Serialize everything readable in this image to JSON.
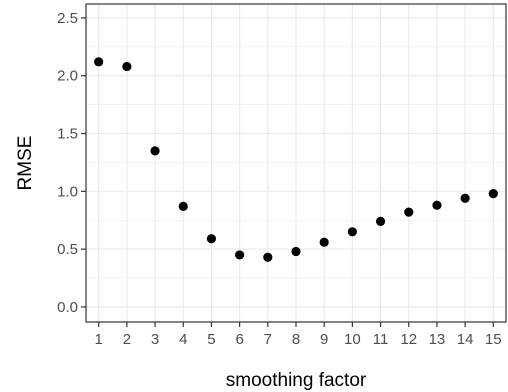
{
  "chart_data": {
    "type": "scatter",
    "title": "",
    "xlabel": "smoothing factor",
    "ylabel": "RMSE",
    "xlim": [
      0.55,
      15.45
    ],
    "ylim": [
      -0.13,
      2.62
    ],
    "x_ticks": [
      1,
      2,
      3,
      4,
      5,
      6,
      7,
      8,
      9,
      10,
      11,
      12,
      13,
      14,
      15
    ],
    "y_ticks": [
      0.0,
      0.5,
      1.0,
      1.5,
      2.0,
      2.5
    ],
    "y_tick_labels": [
      "0.0",
      "0.5",
      "1.0",
      "1.5",
      "2.0",
      "2.5"
    ],
    "grid": true,
    "theme": "bw",
    "point_color": "#000000",
    "grid_color": "#ebebeb",
    "panel_border_color": "#333333",
    "series": [
      {
        "x": [
          1,
          2,
          3,
          4,
          5,
          6,
          7,
          8,
          9,
          10,
          11,
          12,
          13,
          14,
          15
        ],
        "y": [
          2.12,
          2.08,
          1.35,
          0.87,
          0.59,
          0.45,
          0.43,
          0.48,
          0.56,
          0.65,
          0.74,
          0.82,
          0.88,
          0.94,
          0.98
        ]
      }
    ]
  }
}
